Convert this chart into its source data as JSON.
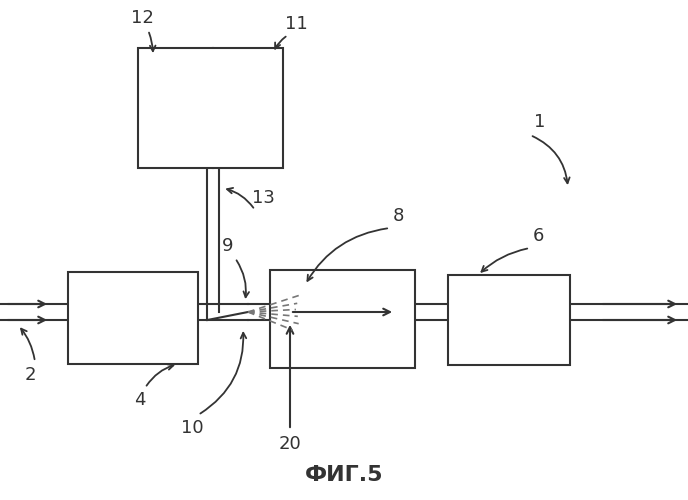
{
  "fig_label": "ФИГ.5",
  "bg_color": "#ffffff",
  "line_color": "#333333",
  "gray_color": "#888888"
}
